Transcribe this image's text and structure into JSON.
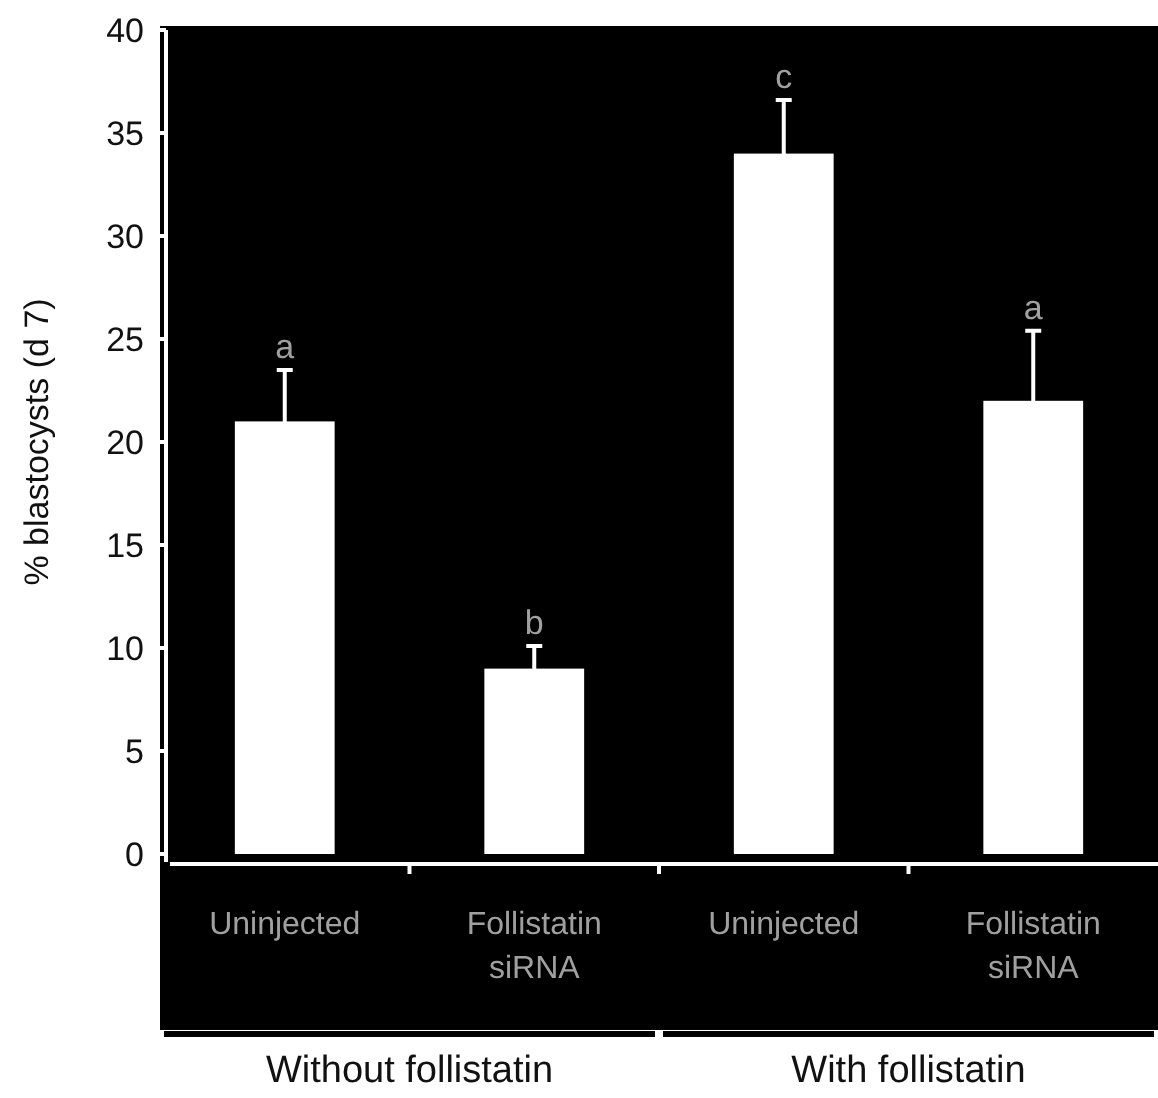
{
  "chart_data": {
    "type": "bar",
    "ylabel": "% blastocysts (d 7)",
    "categories": [
      "Uninjected",
      "Follistatin siRNA",
      "Uninjected",
      "Follistatin siRNA"
    ],
    "values": [
      21,
      9,
      34,
      22
    ],
    "errors": [
      2.5,
      1.1,
      2.6,
      3.4
    ],
    "value_labels": [
      "a",
      "b",
      "c",
      "a"
    ],
    "color": "#ffffff",
    "ylim": [
      0,
      40
    ],
    "yticks": [
      0,
      5,
      10,
      15,
      20,
      25,
      30,
      35,
      40
    ],
    "annotations": [
      "Without follistatin",
      "With follistatin"
    ]
  }
}
